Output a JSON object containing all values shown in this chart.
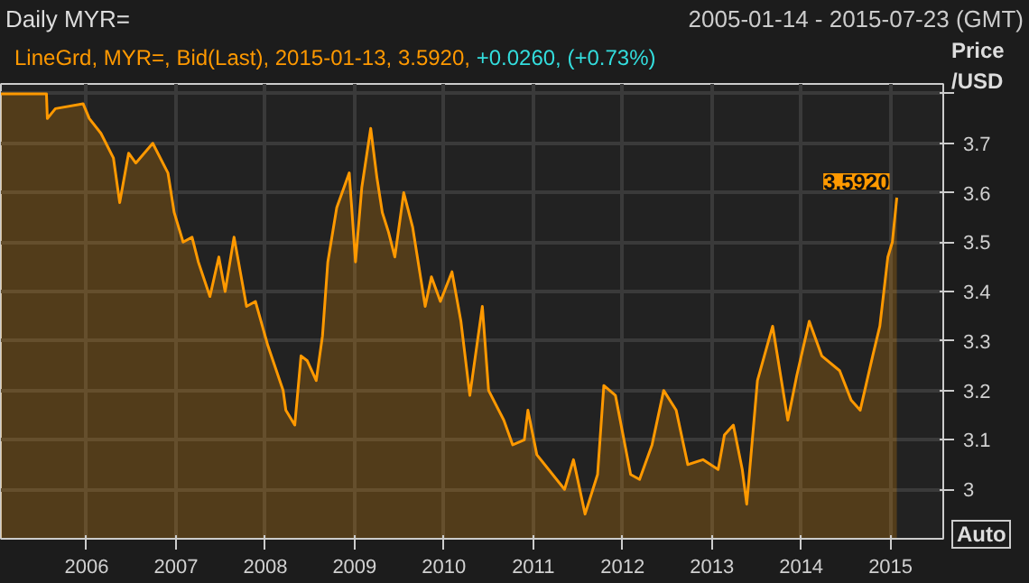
{
  "chart_data": {
    "type": "area",
    "title": "Daily MYR=",
    "subtitle": "2005-01-14 - 2015-07-23 (GMT)",
    "ylabel": "Price /USD",
    "annotations": [
      "LineGrd, MYR=, Bid(Last), 2015-01-13, 3.5920,",
      "+0.0260, (+0.73%)",
      {
        "text": "3.5920",
        "x": 2015.07,
        "y": 3.592
      },
      "Auto"
    ],
    "xlim": [
      2005.04,
      2015.59
    ],
    "ylim": [
      2.9,
      3.82
    ],
    "xticks": [
      2006,
      2007,
      2008,
      2009,
      2010,
      2011,
      2012,
      2013,
      2014,
      2015
    ],
    "yticks": [
      3,
      3.1,
      3.2,
      3.3,
      3.4,
      3.5,
      3.6,
      3.7,
      {
        "value": 3.8,
        "label": null
      }
    ],
    "grid": true,
    "series": [
      {
        "color": "#ff9900",
        "x": [
          2005.04,
          2005.55,
          2005.56,
          2005.65,
          2005.96,
          2006.03,
          2006.16,
          2006.3,
          2006.37,
          2006.47,
          2006.55,
          2006.74,
          2006.91,
          2006.98,
          2007.08,
          2007.18,
          2007.25,
          2007.38,
          2007.48,
          2007.55,
          2007.65,
          2007.79,
          2007.89,
          2008.03,
          2008.2,
          2008.23,
          2008.33,
          2008.4,
          2008.47,
          2008.57,
          2008.64,
          2008.7,
          2008.8,
          2008.94,
          2009.01,
          2009.08,
          2009.18,
          2009.25,
          2009.31,
          2009.38,
          2009.45,
          2009.55,
          2009.65,
          2009.79,
          2009.86,
          2009.96,
          2010.09,
          2010.19,
          2010.29,
          2010.43,
          2010.5,
          2010.67,
          2010.77,
          2010.9,
          2010.94,
          2011.04,
          2011.35,
          2011.45,
          2011.58,
          2011.72,
          2011.79,
          2011.92,
          2012.09,
          2012.19,
          2012.33,
          2012.46,
          2012.6,
          2012.73,
          2012.9,
          2013.07,
          2013.14,
          2013.24,
          2013.34,
          2013.39,
          2013.51,
          2013.68,
          2013.85,
          2013.95,
          2014.09,
          2014.23,
          2014.43,
          2014.56,
          2014.66,
          2014.8,
          2014.88,
          2014.97,
          2015.02,
          2015.07
        ],
        "values": [
          3.8,
          3.8,
          3.75,
          3.77,
          3.78,
          3.75,
          3.72,
          3.67,
          3.58,
          3.68,
          3.66,
          3.7,
          3.64,
          3.56,
          3.5,
          3.51,
          3.46,
          3.39,
          3.47,
          3.4,
          3.51,
          3.37,
          3.38,
          3.29,
          3.2,
          3.16,
          3.13,
          3.27,
          3.26,
          3.22,
          3.31,
          3.46,
          3.57,
          3.64,
          3.46,
          3.61,
          3.73,
          3.63,
          3.56,
          3.52,
          3.47,
          3.6,
          3.53,
          3.37,
          3.43,
          3.38,
          3.44,
          3.34,
          3.19,
          3.37,
          3.2,
          3.14,
          3.09,
          3.1,
          3.16,
          3.07,
          3.0,
          3.06,
          2.95,
          3.03,
          3.21,
          3.19,
          3.03,
          3.02,
          3.09,
          3.2,
          3.16,
          3.05,
          3.06,
          3.04,
          3.11,
          3.13,
          3.04,
          2.97,
          3.22,
          3.33,
          3.14,
          3.23,
          3.34,
          3.27,
          3.24,
          3.18,
          3.16,
          3.27,
          3.33,
          3.47,
          3.5,
          3.59
        ]
      }
    ]
  }
}
